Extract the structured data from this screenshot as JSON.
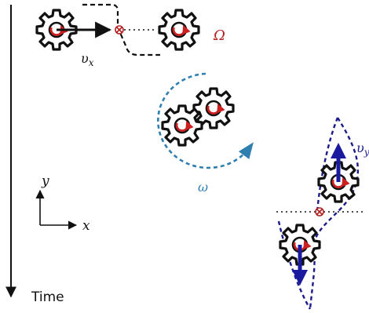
{
  "labels": {
    "vx": "υ",
    "vx_sub": "x",
    "omega_big": "Ω",
    "omega_small": "ω",
    "vy": "υ",
    "vy_sub": "y",
    "axis_y": "y",
    "axis_x": "x",
    "time": "Time"
  },
  "colors": {
    "gear_stroke": "#111111",
    "rotation_arrow": "#cc1f1f",
    "translation_arrow": "#1a1aa0",
    "orbit": "#2f7fb0",
    "omega_big": "#b22222",
    "dashed_path": "#111111",
    "vertical_path": "#1a1a8a"
  }
}
